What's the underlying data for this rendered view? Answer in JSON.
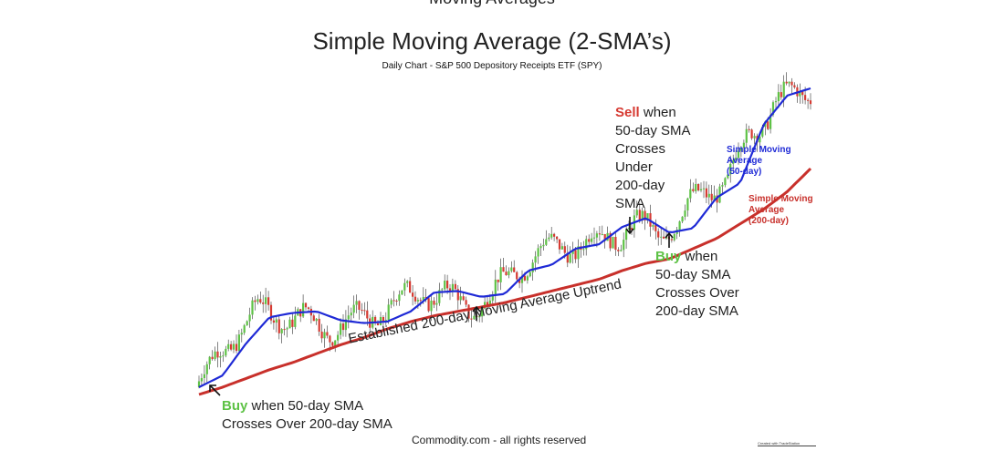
{
  "top_cut_text": "Moving Averages",
  "title": "Simple Moving Average (2-SMA’s)",
  "subtitle": "Daily Chart - S&P 500 Depository Receipts ETF (SPY)",
  "chart_data": {
    "type": "line",
    "series": [
      {
        "name": "Simple Moving Average (50-day)",
        "color": "#1f2ad6",
        "values": [
          0,
          8,
          30,
          48,
          51,
          52,
          46,
          44,
          45,
          52,
          65,
          66,
          62,
          64,
          80,
          84,
          95,
          98,
          110,
          116,
          106,
          109,
          130,
          140,
          180,
          200,
          205
        ]
      },
      {
        "name": "Simple Moving Average (200-day)",
        "color": "#c8302b",
        "values": [
          -5,
          0,
          6,
          12,
          17,
          23,
          29,
          34,
          40,
          45,
          49,
          52,
          55,
          58,
          62,
          66,
          70,
          74,
          80,
          85,
          88,
          95,
          102,
          112,
          122,
          134,
          150
        ]
      }
    ],
    "colors": {
      "price_up": "#5ec246",
      "price_down": "#d63a32",
      "price_wick": "#333333"
    }
  },
  "annotations": {
    "buy1_word": "Buy",
    "buy1_text_line1": " when 50-day SMA",
    "buy1_text_line2": "Crosses Over 200-day SMA",
    "sell_word": "Sell",
    "sell_text_line1": " when",
    "sell_text_rest": [
      "50-day SMA",
      "Crosses",
      "Under",
      "200-day",
      "SMA"
    ],
    "buy2_word": "Buy",
    "buy2_text_line1": " when",
    "buy2_text_rest": [
      "50-day SMA",
      "Crosses Over",
      "200-day SMA"
    ],
    "uptrend": "Established 200-day Moving Average Uptrend",
    "sma50_label": [
      "Simple Moving",
      "Average",
      "(50-day)"
    ],
    "sma200_label": [
      "Simple Moving",
      "Average",
      "(200-day)"
    ]
  },
  "footer": "Commodity.com - all rights reserved",
  "credit": "Created with TradeStation"
}
